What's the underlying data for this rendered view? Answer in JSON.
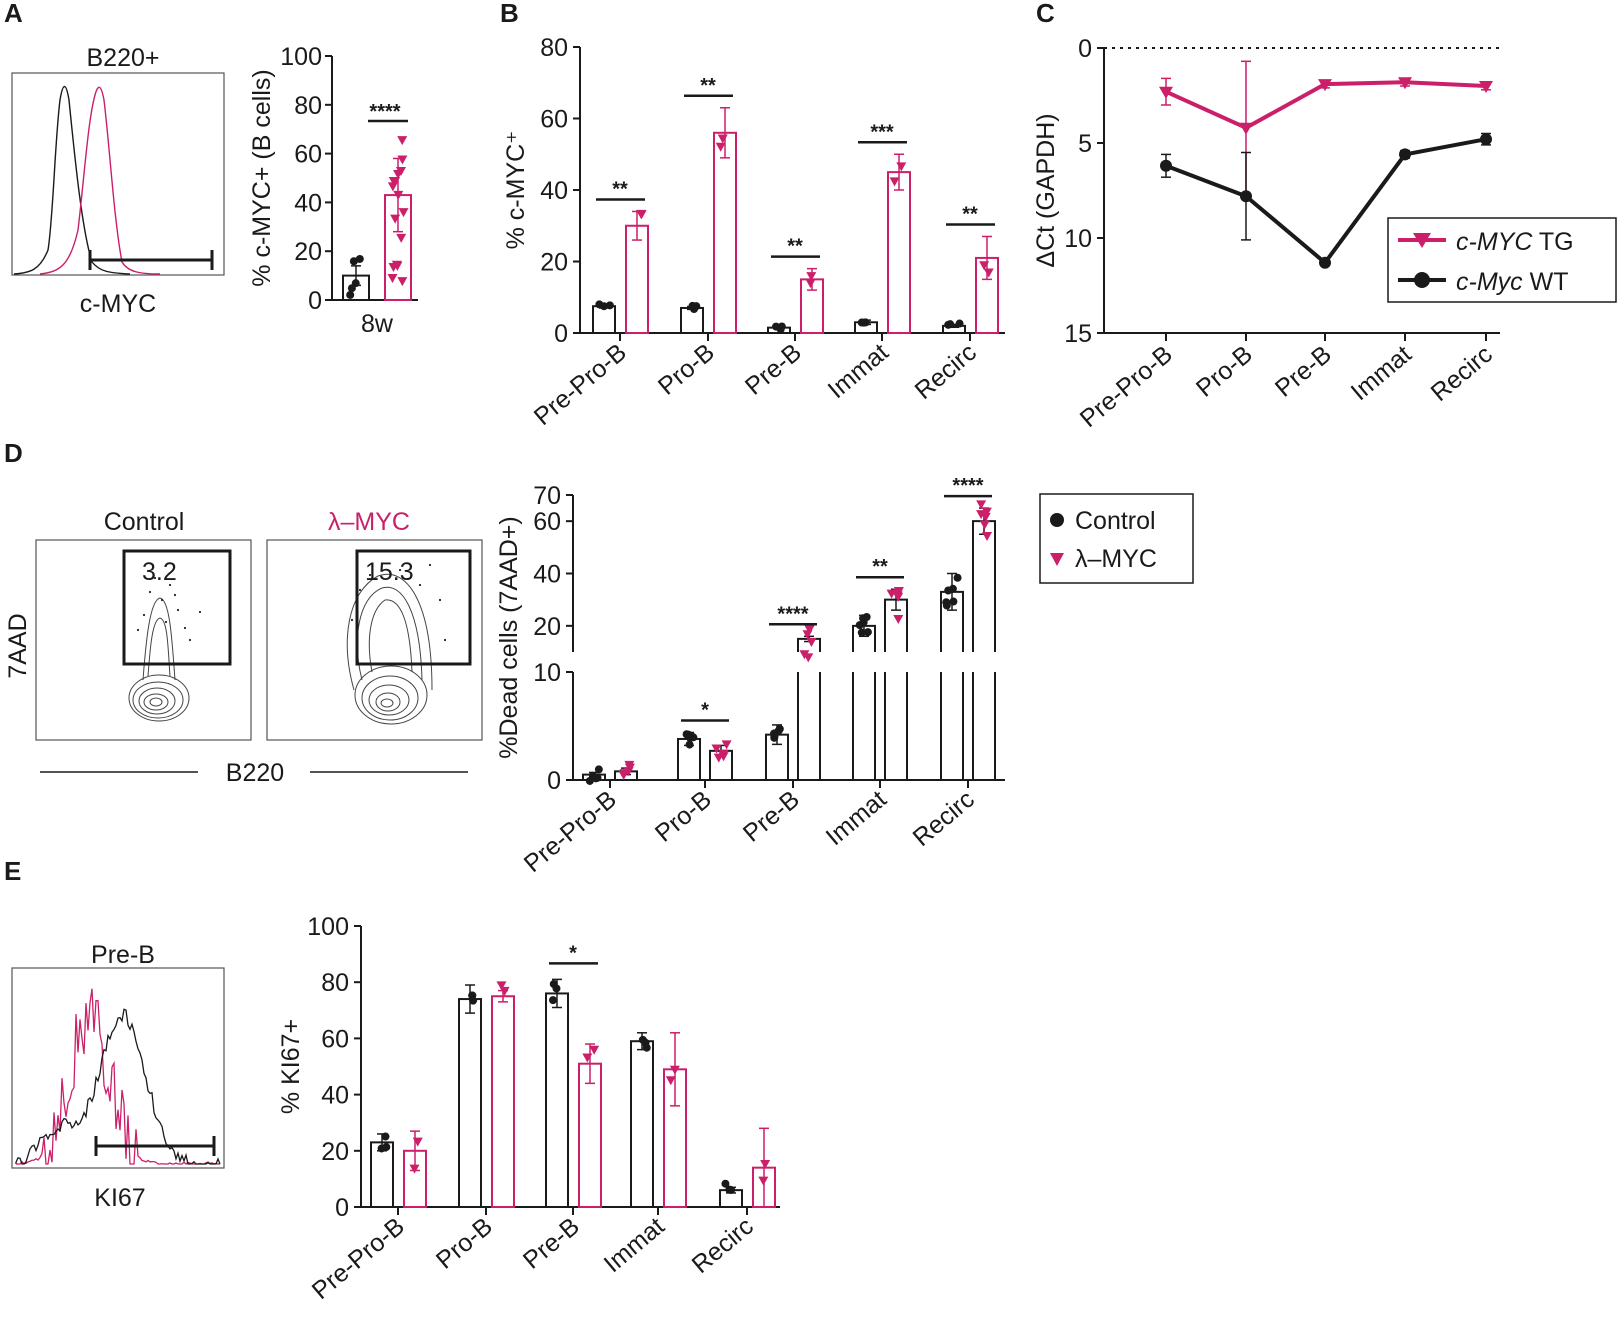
{
  "colors": {
    "control": "#1a1a1a",
    "myc": "#cc1f6a",
    "flow_contour": "#444444"
  },
  "panel_labels": {
    "a": "A",
    "b": "B",
    "c": "C",
    "d": "D",
    "e": "E"
  },
  "panel_a": {
    "hist_title": "B220+",
    "hist_xlabel": "c-MYC",
    "chart_data": {
      "type": "bar",
      "categories": [
        "8w"
      ],
      "series": [
        {
          "name": "Control",
          "values": [
            10
          ]
        },
        {
          "name": "c-MYC TG",
          "values": [
            43
          ]
        }
      ],
      "errors": [
        4,
        15
      ],
      "ylabel": "% c-MYC+ (B cells)",
      "ylim": [
        0,
        100
      ],
      "yticks": [
        0,
        20,
        40,
        60,
        80,
        100
      ],
      "significance": "****"
    }
  },
  "panel_b": {
    "chart_data": {
      "type": "bar",
      "categories": [
        "Pre-Pro-B",
        "Pro-B",
        "Pre-B",
        "Immat",
        "Recirc"
      ],
      "series": [
        {
          "name": "c-Myc WT",
          "values": [
            7.5,
            7,
            1.5,
            3,
            2
          ]
        },
        {
          "name": "c-MYC TG",
          "values": [
            30,
            56,
            15,
            45,
            21
          ]
        }
      ],
      "errors": [
        [
          0.5,
          0.4,
          0.3,
          0.6,
          0.4
        ],
        [
          4,
          7,
          3,
          5,
          6
        ]
      ],
      "ylabel": "% c-MYC⁺",
      "ylim": [
        0,
        80
      ],
      "yticks": [
        0,
        20,
        40,
        60,
        80
      ],
      "significance": [
        "**",
        "**",
        "**",
        "***",
        "**"
      ]
    }
  },
  "panel_c": {
    "chart_data": {
      "type": "line",
      "categories": [
        "Pre-Pro-B",
        "Pro-B",
        "Pre-B",
        "Immat",
        "Recirc"
      ],
      "series": [
        {
          "name": "c-MYC TG",
          "values": [
            2.3,
            4.2,
            1.9,
            1.8,
            2.0
          ],
          "errors": [
            0.7,
            3.5,
            0.2,
            0.2,
            0.2
          ]
        },
        {
          "name": "c-Myc WT",
          "values": [
            6.2,
            7.8,
            11.3,
            5.6,
            4.8
          ],
          "errors": [
            0.6,
            2.3,
            0.1,
            0.2,
            0.3
          ]
        }
      ],
      "ylabel": "ΔCt (GAPDH)",
      "ylim": [
        0,
        15
      ],
      "yticks": [
        0,
        5,
        10,
        15
      ],
      "y_inverted": true,
      "legend": [
        {
          "italic": "c-MYC",
          "plain": " TG"
        },
        {
          "italic": "c-Myc",
          "plain": " WT"
        }
      ]
    }
  },
  "panel_d": {
    "flow_titles": [
      "Control",
      "λ–MYC"
    ],
    "flow_values": [
      "3.2",
      "15.3"
    ],
    "flow_xlabel": "B220",
    "flow_ylabel": "7AAD",
    "legend": [
      "Control",
      "λ–MYC"
    ],
    "chart_data": {
      "type": "bar",
      "categories": [
        "Pre-Pro-B",
        "Pro-B",
        "Pre-B",
        "Immat",
        "Recirc"
      ],
      "series": [
        {
          "name": "Control",
          "values": [
            0.5,
            3.8,
            4.2,
            20,
            33
          ]
        },
        {
          "name": "λ–MYC",
          "values": [
            0.8,
            2.7,
            15,
            30,
            60
          ]
        }
      ],
      "errors": [
        [
          0.2,
          0.6,
          0.9,
          4,
          7
        ],
        [
          0.3,
          0.5,
          1,
          4,
          5
        ]
      ],
      "ylabel": "%Dead cells (7AAD+)",
      "broken_axis": {
        "lower": [
          0,
          10
        ],
        "upper": [
          10,
          70
        ]
      },
      "yticks_lower": [
        0,
        10
      ],
      "yticks_upper": [
        20,
        40,
        60,
        70
      ],
      "significance": [
        "",
        "*",
        "****",
        "**",
        "****"
      ]
    }
  },
  "panel_e": {
    "hist_title": "Pre-B",
    "hist_xlabel": "KI67",
    "chart_data": {
      "type": "bar",
      "categories": [
        "Pre-Pro-B",
        "Pro-B",
        "Pre-B",
        "Immat",
        "Recirc"
      ],
      "series": [
        {
          "name": "Control",
          "values": [
            23,
            74,
            76,
            59,
            6
          ]
        },
        {
          "name": "λ–MYC",
          "values": [
            20,
            75,
            51,
            49,
            14
          ]
        }
      ],
      "errors": [
        [
          3,
          5,
          5,
          3,
          1
        ],
        [
          7,
          2,
          7,
          13,
          14
        ]
      ],
      "ylabel": "% KI67+",
      "ylim": [
        0,
        100
      ],
      "yticks": [
        0,
        20,
        40,
        60,
        80,
        100
      ],
      "significance": [
        "",
        "",
        "*",
        "",
        ""
      ]
    }
  }
}
